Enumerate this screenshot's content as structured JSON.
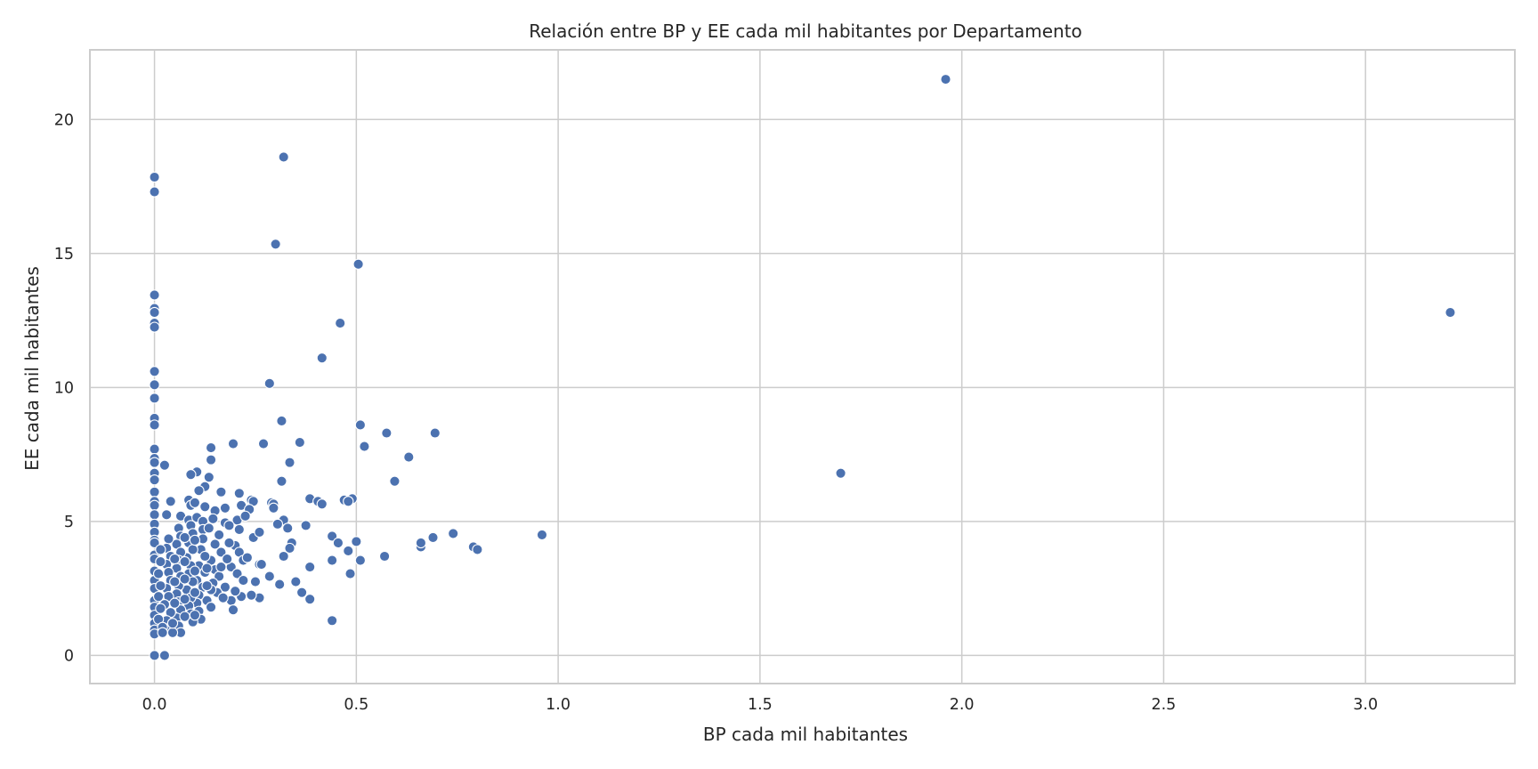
{
  "chart_data": {
    "type": "scatter",
    "title": "Relación entre BP y EE cada mil habitantes por Departamento",
    "xlabel": "BP cada mil habitantes",
    "ylabel": "EE cada mil habitantes",
    "xlim": [
      -0.16,
      3.37
    ],
    "ylim": [
      -1.05,
      22.6
    ],
    "xticks": [
      0.0,
      0.5,
      1.0,
      1.5,
      2.0,
      2.5,
      3.0
    ],
    "xtick_labels": [
      "0.0",
      "0.5",
      "1.0",
      "1.5",
      "2.0",
      "2.5",
      "3.0"
    ],
    "yticks": [
      0,
      5,
      10,
      15,
      20
    ],
    "ytick_labels": [
      "0",
      "5",
      "10",
      "15",
      "20"
    ],
    "grid": true,
    "legend": "none",
    "marker_color": "#4c72b0",
    "points": [
      [
        1.96,
        21.5
      ],
      [
        3.21,
        12.8
      ],
      [
        1.7,
        6.8
      ],
      [
        0.0,
        17.85
      ],
      [
        0.0,
        17.3
      ],
      [
        0.0,
        13.45
      ],
      [
        0.0,
        12.95
      ],
      [
        0.0,
        12.8
      ],
      [
        0.0,
        12.4
      ],
      [
        0.0,
        12.25
      ],
      [
        0.0,
        10.6
      ],
      [
        0.0,
        10.1
      ],
      [
        0.0,
        9.6
      ],
      [
        0.0,
        8.85
      ],
      [
        0.0,
        8.6
      ],
      [
        0.0,
        7.7
      ],
      [
        0.0,
        7.35
      ],
      [
        0.0,
        7.2
      ],
      [
        0.0,
        6.8
      ],
      [
        0.0,
        6.55
      ],
      [
        0.0,
        6.1
      ],
      [
        0.0,
        5.75
      ],
      [
        0.0,
        5.6
      ],
      [
        0.0,
        5.25
      ],
      [
        0.0,
        4.9
      ],
      [
        0.0,
        4.6
      ],
      [
        0.0,
        4.3
      ],
      [
        0.0,
        4.2
      ],
      [
        0.0,
        3.75
      ],
      [
        0.0,
        3.6
      ],
      [
        0.0,
        3.15
      ],
      [
        0.0,
        2.8
      ],
      [
        0.0,
        2.5
      ],
      [
        0.0,
        2.05
      ],
      [
        0.0,
        1.8
      ],
      [
        0.0,
        1.5
      ],
      [
        0.0,
        1.2
      ],
      [
        0.0,
        0.95
      ],
      [
        0.0,
        0.8
      ],
      [
        0.0,
        0.0
      ],
      [
        0.025,
        0.0
      ],
      [
        0.32,
        18.6
      ],
      [
        0.3,
        15.35
      ],
      [
        0.505,
        14.6
      ],
      [
        0.46,
        12.4
      ],
      [
        0.415,
        11.1
      ],
      [
        0.285,
        10.15
      ],
      [
        0.315,
        8.75
      ],
      [
        0.51,
        8.6
      ],
      [
        0.575,
        8.3
      ],
      [
        0.695,
        8.3
      ],
      [
        0.36,
        7.95
      ],
      [
        0.27,
        7.9
      ],
      [
        0.195,
        7.9
      ],
      [
        0.52,
        7.8
      ],
      [
        0.14,
        7.75
      ],
      [
        0.63,
        7.4
      ],
      [
        0.14,
        7.3
      ],
      [
        0.335,
        7.2
      ],
      [
        0.025,
        7.1
      ],
      [
        0.105,
        6.85
      ],
      [
        0.09,
        6.75
      ],
      [
        0.135,
        6.65
      ],
      [
        0.595,
        6.5
      ],
      [
        0.315,
        6.5
      ],
      [
        0.125,
        6.3
      ],
      [
        0.11,
        6.15
      ],
      [
        0.165,
        6.1
      ],
      [
        0.21,
        6.05
      ],
      [
        0.385,
        5.85
      ],
      [
        0.47,
        5.8
      ],
      [
        0.49,
        5.85
      ],
      [
        0.48,
        5.75
      ],
      [
        0.405,
        5.75
      ],
      [
        0.415,
        5.65
      ],
      [
        0.24,
        5.8
      ],
      [
        0.245,
        5.75
      ],
      [
        0.29,
        5.7
      ],
      [
        0.295,
        5.65
      ],
      [
        0.295,
        5.5
      ],
      [
        0.215,
        5.6
      ],
      [
        0.235,
        5.45
      ],
      [
        0.15,
        5.4
      ],
      [
        0.175,
        5.5
      ],
      [
        0.085,
        5.8
      ],
      [
        0.09,
        5.6
      ],
      [
        0.1,
        5.7
      ],
      [
        0.125,
        5.55
      ],
      [
        0.04,
        5.75
      ],
      [
        0.03,
        5.25
      ],
      [
        0.065,
        5.2
      ],
      [
        0.085,
        5.05
      ],
      [
        0.105,
        5.15
      ],
      [
        0.12,
        5.0
      ],
      [
        0.145,
        5.1
      ],
      [
        0.175,
        4.95
      ],
      [
        0.205,
        5.05
      ],
      [
        0.225,
        5.2
      ],
      [
        0.32,
        5.05
      ],
      [
        0.305,
        4.9
      ],
      [
        0.33,
        4.75
      ],
      [
        0.375,
        4.85
      ],
      [
        0.245,
        4.4
      ],
      [
        0.26,
        4.6
      ],
      [
        0.44,
        4.45
      ],
      [
        0.455,
        4.2
      ],
      [
        0.5,
        4.25
      ],
      [
        0.34,
        4.2
      ],
      [
        0.335,
        4.0
      ],
      [
        0.32,
        3.7
      ],
      [
        0.48,
        3.9
      ],
      [
        0.44,
        3.55
      ],
      [
        0.51,
        3.55
      ],
      [
        0.57,
        3.7
      ],
      [
        0.66,
        4.05
      ],
      [
        0.66,
        4.2
      ],
      [
        0.69,
        4.4
      ],
      [
        0.74,
        4.55
      ],
      [
        0.79,
        4.05
      ],
      [
        0.8,
        3.95
      ],
      [
        0.96,
        4.5
      ],
      [
        0.385,
        3.3
      ],
      [
        0.26,
        3.4
      ],
      [
        0.485,
        3.05
      ],
      [
        0.285,
        2.95
      ],
      [
        0.35,
        2.75
      ],
      [
        0.365,
        2.35
      ],
      [
        0.385,
        2.1
      ],
      [
        0.31,
        2.65
      ],
      [
        0.26,
        2.15
      ],
      [
        0.25,
        2.75
      ],
      [
        0.24,
        2.25
      ],
      [
        0.215,
        2.2
      ],
      [
        0.19,
        2.05
      ],
      [
        0.195,
        1.7
      ],
      [
        0.44,
        1.3
      ],
      [
        0.21,
        4.7
      ],
      [
        0.2,
        4.1
      ],
      [
        0.21,
        3.85
      ],
      [
        0.22,
        3.55
      ],
      [
        0.19,
        3.3
      ],
      [
        0.205,
        3.05
      ],
      [
        0.22,
        2.8
      ],
      [
        0.175,
        2.55
      ],
      [
        0.16,
        4.5
      ],
      [
        0.15,
        4.15
      ],
      [
        0.165,
        3.85
      ],
      [
        0.14,
        3.55
      ],
      [
        0.15,
        3.2
      ],
      [
        0.16,
        2.95
      ],
      [
        0.145,
        2.7
      ],
      [
        0.155,
        2.35
      ],
      [
        0.13,
        2.05
      ],
      [
        0.14,
        1.8
      ],
      [
        0.12,
        4.7
      ],
      [
        0.12,
        4.35
      ],
      [
        0.115,
        3.95
      ],
      [
        0.125,
        3.7
      ],
      [
        0.11,
        3.35
      ],
      [
        0.125,
        3.1
      ],
      [
        0.105,
        2.8
      ],
      [
        0.12,
        2.55
      ],
      [
        0.11,
        2.25
      ],
      [
        0.105,
        1.95
      ],
      [
        0.11,
        1.65
      ],
      [
        0.115,
        1.35
      ],
      [
        0.09,
        4.85
      ],
      [
        0.095,
        4.55
      ],
      [
        0.085,
        4.2
      ],
      [
        0.095,
        3.95
      ],
      [
        0.08,
        3.65
      ],
      [
        0.09,
        3.35
      ],
      [
        0.085,
        3.05
      ],
      [
        0.095,
        2.75
      ],
      [
        0.08,
        2.45
      ],
      [
        0.09,
        2.15
      ],
      [
        0.085,
        1.85
      ],
      [
        0.09,
        1.55
      ],
      [
        0.095,
        1.25
      ],
      [
        0.06,
        4.75
      ],
      [
        0.065,
        4.45
      ],
      [
        0.055,
        4.15
      ],
      [
        0.065,
        3.85
      ],
      [
        0.06,
        3.55
      ],
      [
        0.055,
        3.25
      ],
      [
        0.065,
        2.95
      ],
      [
        0.06,
        2.6
      ],
      [
        0.055,
        2.3
      ],
      [
        0.06,
        2.0
      ],
      [
        0.065,
        1.7
      ],
      [
        0.055,
        1.4
      ],
      [
        0.06,
        1.1
      ],
      [
        0.065,
        0.85
      ],
      [
        0.035,
        4.35
      ],
      [
        0.03,
        4.0
      ],
      [
        0.04,
        3.7
      ],
      [
        0.03,
        3.4
      ],
      [
        0.035,
        3.1
      ],
      [
        0.04,
        2.8
      ],
      [
        0.03,
        2.5
      ],
      [
        0.035,
        2.2
      ],
      [
        0.025,
        1.9
      ],
      [
        0.04,
        1.6
      ],
      [
        0.03,
        1.3
      ],
      [
        0.035,
        1.0
      ],
      [
        0.045,
        0.85
      ],
      [
        0.015,
        3.95
      ],
      [
        0.015,
        3.5
      ],
      [
        0.01,
        3.05
      ],
      [
        0.015,
        2.6
      ],
      [
        0.01,
        2.2
      ],
      [
        0.015,
        1.75
      ],
      [
        0.01,
        1.35
      ],
      [
        0.02,
        1.05
      ],
      [
        0.02,
        0.85
      ],
      [
        0.135,
        4.75
      ],
      [
        0.185,
        4.2
      ],
      [
        0.18,
        3.6
      ],
      [
        0.165,
        3.3
      ],
      [
        0.23,
        3.65
      ],
      [
        0.265,
        3.4
      ],
      [
        0.14,
        2.45
      ],
      [
        0.075,
        4.4
      ],
      [
        0.075,
        3.5
      ],
      [
        0.075,
        2.85
      ],
      [
        0.075,
        2.1
      ],
      [
        0.075,
        1.45
      ],
      [
        0.05,
        3.6
      ],
      [
        0.05,
        2.75
      ],
      [
        0.05,
        1.95
      ],
      [
        0.045,
        1.2
      ],
      [
        0.1,
        4.3
      ],
      [
        0.1,
        3.15
      ],
      [
        0.1,
        2.35
      ],
      [
        0.1,
        1.5
      ],
      [
        0.13,
        3.25
      ],
      [
        0.13,
        2.6
      ],
      [
        0.17,
        2.15
      ],
      [
        0.185,
        4.85
      ],
      [
        0.2,
        2.4
      ]
    ]
  }
}
